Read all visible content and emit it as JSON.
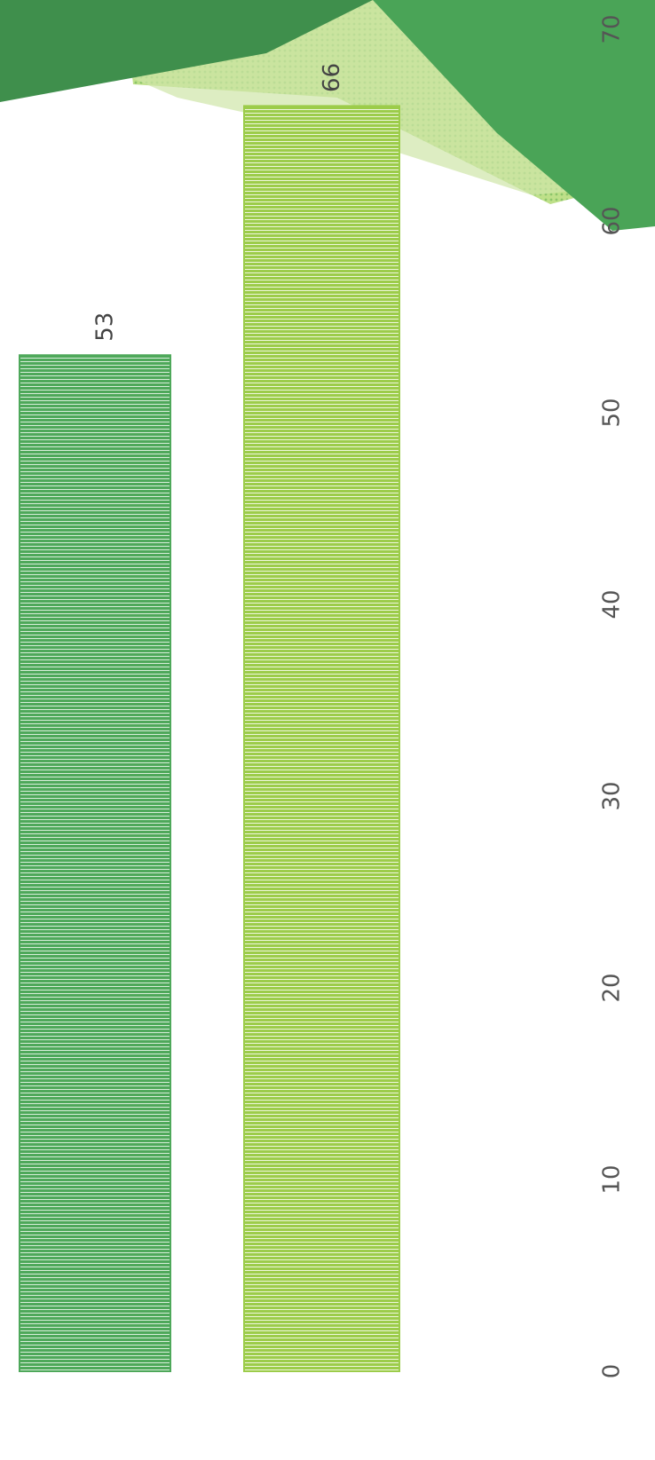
{
  "chart_data": {
    "type": "bar",
    "orientation": "vertical-rotated",
    "categories": [
      "",
      ""
    ],
    "values": [
      53,
      66
    ],
    "data_labels": [
      "53",
      "66"
    ],
    "colors": [
      "#4ea85a",
      "#9ccc4a"
    ],
    "ylim": [
      0,
      70
    ],
    "yticks": [
      0,
      10,
      20,
      30,
      40,
      50,
      60,
      70
    ],
    "ytick_labels": [
      "0",
      "10",
      "20",
      "30",
      "40",
      "50",
      "60",
      "70"
    ],
    "grid": false,
    "legend": "none"
  }
}
